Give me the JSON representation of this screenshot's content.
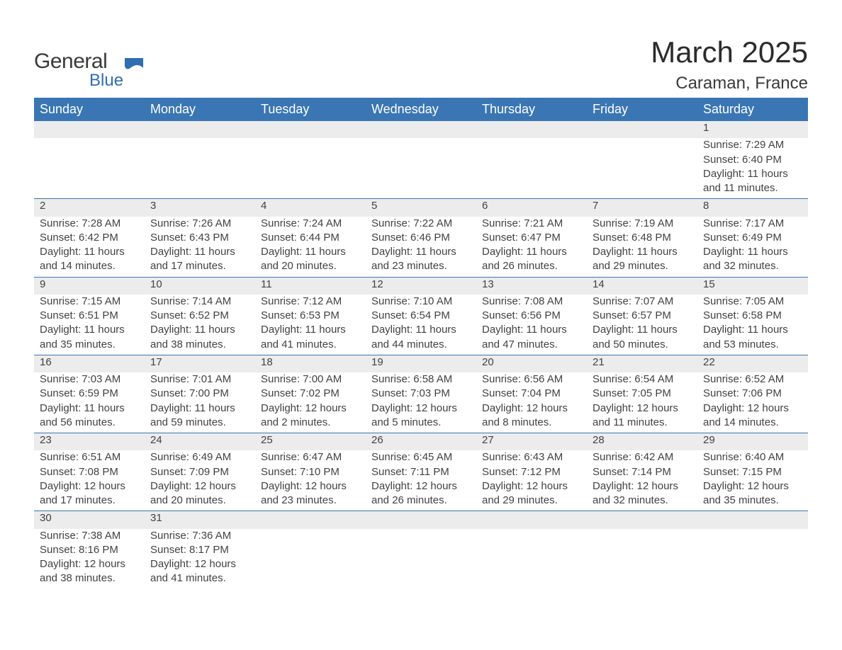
{
  "logo": {
    "line1": "General",
    "line2": "Blue",
    "shape_color": "#2f6eb0"
  },
  "title": "March 2025",
  "location": "Caraman, France",
  "colors": {
    "header_bg": "#3a76b4",
    "header_text": "#ffffff",
    "daynum_bg": "#ececec",
    "row_border": "#3a76b4",
    "body_text": "#424242",
    "page_bg": "#ffffff"
  },
  "days_of_week": [
    "Sunday",
    "Monday",
    "Tuesday",
    "Wednesday",
    "Thursday",
    "Friday",
    "Saturday"
  ],
  "weeks": [
    [
      null,
      null,
      null,
      null,
      null,
      null,
      {
        "n": "1",
        "sunrise": "7:29 AM",
        "sunset": "6:40 PM",
        "daylight": "11 hours and 11 minutes."
      }
    ],
    [
      {
        "n": "2",
        "sunrise": "7:28 AM",
        "sunset": "6:42 PM",
        "daylight": "11 hours and 14 minutes."
      },
      {
        "n": "3",
        "sunrise": "7:26 AM",
        "sunset": "6:43 PM",
        "daylight": "11 hours and 17 minutes."
      },
      {
        "n": "4",
        "sunrise": "7:24 AM",
        "sunset": "6:44 PM",
        "daylight": "11 hours and 20 minutes."
      },
      {
        "n": "5",
        "sunrise": "7:22 AM",
        "sunset": "6:46 PM",
        "daylight": "11 hours and 23 minutes."
      },
      {
        "n": "6",
        "sunrise": "7:21 AM",
        "sunset": "6:47 PM",
        "daylight": "11 hours and 26 minutes."
      },
      {
        "n": "7",
        "sunrise": "7:19 AM",
        "sunset": "6:48 PM",
        "daylight": "11 hours and 29 minutes."
      },
      {
        "n": "8",
        "sunrise": "7:17 AM",
        "sunset": "6:49 PM",
        "daylight": "11 hours and 32 minutes."
      }
    ],
    [
      {
        "n": "9",
        "sunrise": "7:15 AM",
        "sunset": "6:51 PM",
        "daylight": "11 hours and 35 minutes."
      },
      {
        "n": "10",
        "sunrise": "7:14 AM",
        "sunset": "6:52 PM",
        "daylight": "11 hours and 38 minutes."
      },
      {
        "n": "11",
        "sunrise": "7:12 AM",
        "sunset": "6:53 PM",
        "daylight": "11 hours and 41 minutes."
      },
      {
        "n": "12",
        "sunrise": "7:10 AM",
        "sunset": "6:54 PM",
        "daylight": "11 hours and 44 minutes."
      },
      {
        "n": "13",
        "sunrise": "7:08 AM",
        "sunset": "6:56 PM",
        "daylight": "11 hours and 47 minutes."
      },
      {
        "n": "14",
        "sunrise": "7:07 AM",
        "sunset": "6:57 PM",
        "daylight": "11 hours and 50 minutes."
      },
      {
        "n": "15",
        "sunrise": "7:05 AM",
        "sunset": "6:58 PM",
        "daylight": "11 hours and 53 minutes."
      }
    ],
    [
      {
        "n": "16",
        "sunrise": "7:03 AM",
        "sunset": "6:59 PM",
        "daylight": "11 hours and 56 minutes."
      },
      {
        "n": "17",
        "sunrise": "7:01 AM",
        "sunset": "7:00 PM",
        "daylight": "11 hours and 59 minutes."
      },
      {
        "n": "18",
        "sunrise": "7:00 AM",
        "sunset": "7:02 PM",
        "daylight": "12 hours and 2 minutes."
      },
      {
        "n": "19",
        "sunrise": "6:58 AM",
        "sunset": "7:03 PM",
        "daylight": "12 hours and 5 minutes."
      },
      {
        "n": "20",
        "sunrise": "6:56 AM",
        "sunset": "7:04 PM",
        "daylight": "12 hours and 8 minutes."
      },
      {
        "n": "21",
        "sunrise": "6:54 AM",
        "sunset": "7:05 PM",
        "daylight": "12 hours and 11 minutes."
      },
      {
        "n": "22",
        "sunrise": "6:52 AM",
        "sunset": "7:06 PM",
        "daylight": "12 hours and 14 minutes."
      }
    ],
    [
      {
        "n": "23",
        "sunrise": "6:51 AM",
        "sunset": "7:08 PM",
        "daylight": "12 hours and 17 minutes."
      },
      {
        "n": "24",
        "sunrise": "6:49 AM",
        "sunset": "7:09 PM",
        "daylight": "12 hours and 20 minutes."
      },
      {
        "n": "25",
        "sunrise": "6:47 AM",
        "sunset": "7:10 PM",
        "daylight": "12 hours and 23 minutes."
      },
      {
        "n": "26",
        "sunrise": "6:45 AM",
        "sunset": "7:11 PM",
        "daylight": "12 hours and 26 minutes."
      },
      {
        "n": "27",
        "sunrise": "6:43 AM",
        "sunset": "7:12 PM",
        "daylight": "12 hours and 29 minutes."
      },
      {
        "n": "28",
        "sunrise": "6:42 AM",
        "sunset": "7:14 PM",
        "daylight": "12 hours and 32 minutes."
      },
      {
        "n": "29",
        "sunrise": "6:40 AM",
        "sunset": "7:15 PM",
        "daylight": "12 hours and 35 minutes."
      }
    ],
    [
      {
        "n": "30",
        "sunrise": "7:38 AM",
        "sunset": "8:16 PM",
        "daylight": "12 hours and 38 minutes."
      },
      {
        "n": "31",
        "sunrise": "7:36 AM",
        "sunset": "8:17 PM",
        "daylight": "12 hours and 41 minutes."
      },
      null,
      null,
      null,
      null,
      null
    ]
  ],
  "labels": {
    "sunrise": "Sunrise: ",
    "sunset": "Sunset: ",
    "daylight": "Daylight: "
  }
}
